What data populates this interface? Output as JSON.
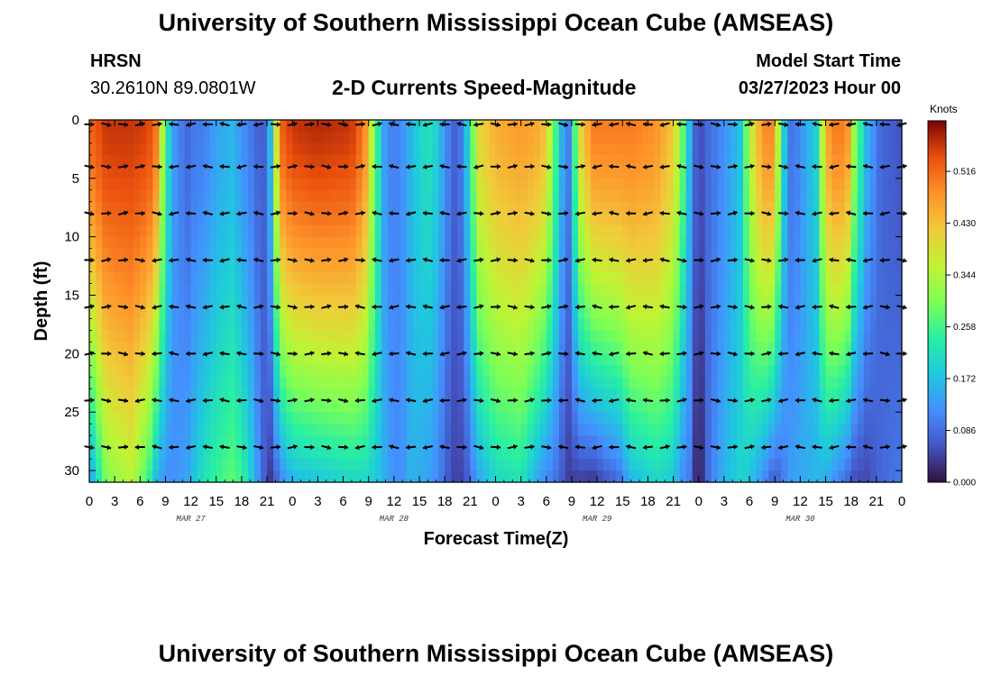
{
  "header": {
    "title_top": "University of Southern Mississippi Ocean Cube (AMSEAS)",
    "title_bottom": "University of Southern Mississippi Ocean Cube (AMSEAS)",
    "station": "HRSN",
    "coords": "30.2610N  89.0801W",
    "model_label": "Model Start Time",
    "model_time": "03/27/2023 Hour 00"
  },
  "chart_data": {
    "type": "heatmap",
    "title": "2-D Currents Speed-Magnitude",
    "xlabel": "Forecast Time(Z)",
    "ylabel": "Depth (ft)",
    "x_range_hours": [
      0,
      96
    ],
    "ylim": [
      31,
      0
    ],
    "y_ticks": [
      0,
      5,
      10,
      15,
      20,
      25,
      30
    ],
    "x_tick_labels": [
      "0",
      "3",
      "6",
      "9",
      "12",
      "15",
      "18",
      "21",
      "0",
      "3",
      "6",
      "9",
      "12",
      "15",
      "18",
      "21",
      "0",
      "3",
      "6",
      "9",
      "12",
      "15",
      "18",
      "21",
      "0",
      "3",
      "6",
      "9",
      "12",
      "15",
      "18",
      "21",
      "0"
    ],
    "date_labels": [
      {
        "label": "MAR 27",
        "hour": 12
      },
      {
        "label": "MAR 28",
        "hour": 36
      },
      {
        "label": "MAR 29",
        "hour": 60
      },
      {
        "label": "MAR 30",
        "hour": 84
      }
    ],
    "colorbar": {
      "title": "Knots",
      "min": 0.0,
      "max": 0.6,
      "ticks": [
        "0.000",
        "0.086",
        "0.172",
        "0.258",
        "0.344",
        "0.430",
        "0.516"
      ]
    },
    "speed_profile": {
      "hours": [
        0,
        2,
        5,
        7,
        8,
        9,
        10,
        11.5,
        12.5,
        13.5,
        15,
        17,
        18,
        19,
        20.5,
        21.5,
        22.5,
        24,
        27,
        31,
        32.5,
        34,
        35,
        36,
        37,
        38,
        39,
        40.5,
        41.5,
        42.5,
        43.5,
        44.5,
        46,
        48,
        51,
        53.5,
        54.5,
        55.5,
        56.5,
        58,
        59.5,
        61,
        62.5,
        64,
        67,
        69,
        70,
        71,
        71.5,
        72,
        72.5,
        73,
        75,
        77,
        78,
        79.5,
        80.5,
        81,
        82,
        83,
        86,
        87,
        88,
        89.5,
        90.5,
        92,
        93.5,
        96
      ],
      "surface": [
        0.52,
        0.56,
        0.56,
        0.55,
        0.5,
        0.25,
        0.13,
        0.08,
        0.1,
        0.1,
        0.14,
        0.16,
        0.12,
        0.1,
        0.06,
        0.18,
        0.52,
        0.56,
        0.57,
        0.56,
        0.5,
        0.25,
        0.12,
        0.1,
        0.12,
        0.16,
        0.2,
        0.22,
        0.16,
        0.1,
        0.06,
        0.16,
        0.4,
        0.45,
        0.47,
        0.45,
        0.35,
        0.2,
        0.08,
        0.4,
        0.5,
        0.5,
        0.5,
        0.5,
        0.48,
        0.42,
        0.3,
        0.15,
        0.08,
        0.06,
        0.06,
        0.08,
        0.12,
        0.18,
        0.35,
        0.48,
        0.5,
        0.45,
        0.2,
        0.08,
        0.2,
        0.45,
        0.5,
        0.5,
        0.3,
        0.15,
        0.08,
        0.06
      ],
      "bottom": [
        0.12,
        0.3,
        0.35,
        0.25,
        0.15,
        0.12,
        0.12,
        0.14,
        0.18,
        0.22,
        0.25,
        0.28,
        0.25,
        0.2,
        0.08,
        0.03,
        0.1,
        0.16,
        0.18,
        0.2,
        0.2,
        0.18,
        0.15,
        0.12,
        0.12,
        0.16,
        0.15,
        0.13,
        0.1,
        0.06,
        0.04,
        0.06,
        0.14,
        0.2,
        0.22,
        0.12,
        0.1,
        0.08,
        0.04,
        0.04,
        0.03,
        0.06,
        0.08,
        0.16,
        0.2,
        0.18,
        0.12,
        0.1,
        0.03,
        0.02,
        0.03,
        0.08,
        0.16,
        0.2,
        0.18,
        0.12,
        0.08,
        0.06,
        0.1,
        0.14,
        0.16,
        0.15,
        0.12,
        0.08,
        0.05,
        0.05,
        0.08,
        0.1
      ]
    }
  }
}
